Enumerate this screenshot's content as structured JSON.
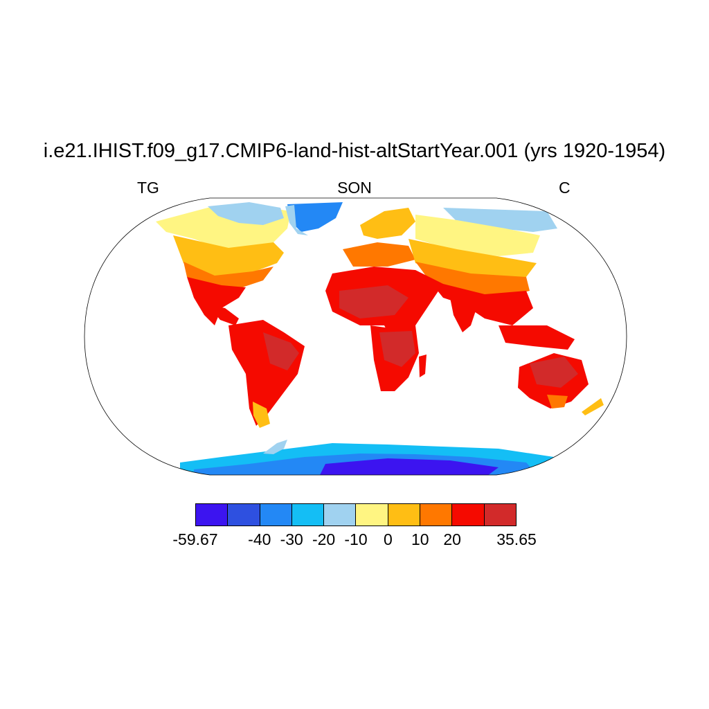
{
  "title": "i.e21.IHIST.f09_g17.CMIP6-land-hist-altStartYear.001 (yrs 1920-1954)",
  "subtitle_left": "TG",
  "subtitle_center": "SON",
  "subtitle_right": "C",
  "map": {
    "projection": "robinson",
    "field": "TG",
    "season": "SON",
    "units": "C",
    "ocean_color": "#ffffff",
    "coastline_color": "#000000"
  },
  "colorbar": {
    "colors": [
      "#3c14f0",
      "#2e50e0",
      "#2388f5",
      "#14bef5",
      "#a0d2f0",
      "#fff582",
      "#ffbe14",
      "#ff7800",
      "#f50a00",
      "#d22a2a"
    ],
    "labels": [
      "-59.67",
      "-40",
      "-30",
      "-20",
      "-10",
      "0",
      "10",
      "20",
      "35.65"
    ],
    "levels": [
      -40,
      -30,
      -20,
      -10,
      0,
      10,
      20
    ],
    "min": -59.67,
    "max": 35.65
  }
}
